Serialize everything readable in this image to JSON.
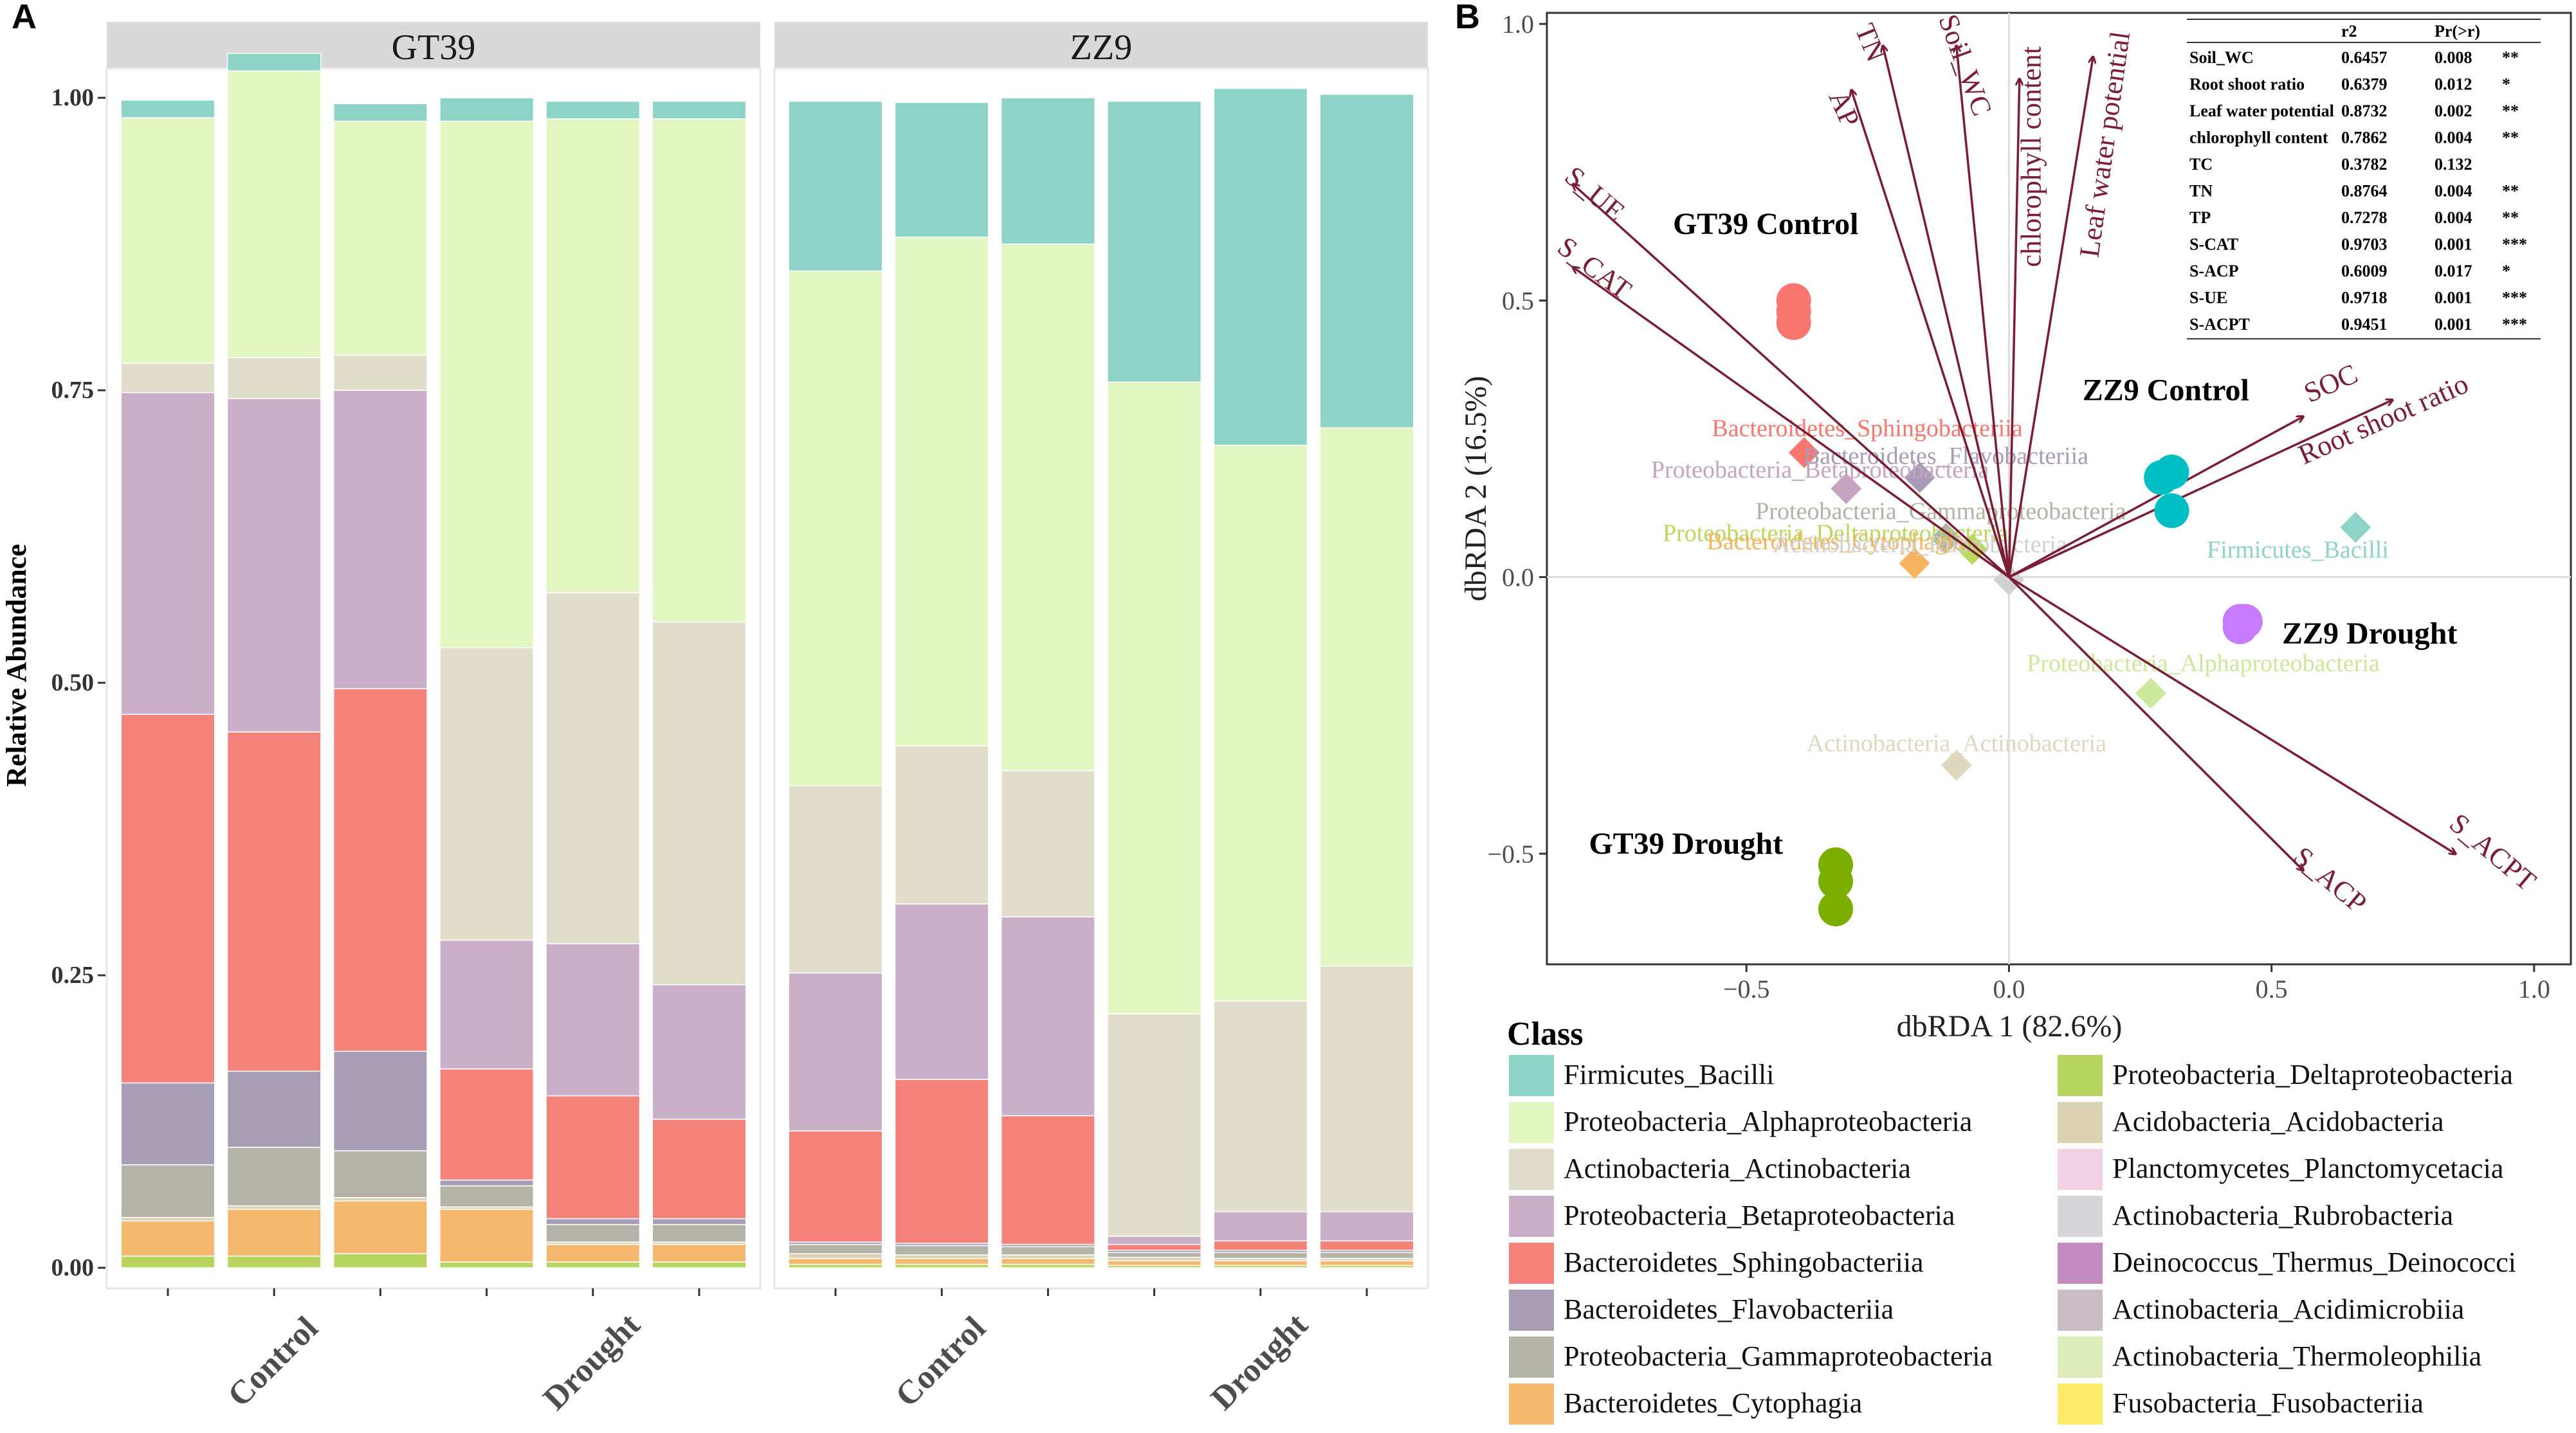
{
  "chart_data": [
    {
      "panel_label": "A",
      "type": "bar",
      "subtype": "stacked-100",
      "ylabel": "Relative Abundance",
      "ylim": [
        0,
        1
      ],
      "yticks": [
        "0.00",
        "0.25",
        "0.50",
        "0.75",
        "1.00"
      ],
      "facets": [
        {
          "name": "GT39",
          "groups": [
            "Control",
            "Drought"
          ],
          "bars": [
            [
              0.01,
              0.03,
              0.003,
              0.045,
              0.07,
              0.315,
              0.275,
              0.025,
              0.21,
              0.015
            ],
            [
              0.01,
              0.04,
              0.003,
              0.05,
              0.065,
              0.29,
              0.285,
              0.035,
              0.245,
              0.015
            ],
            [
              0.012,
              0.045,
              0.003,
              0.04,
              0.085,
              0.31,
              0.255,
              0.03,
              0.2,
              0.015
            ],
            [
              0.005,
              0.045,
              0.002,
              0.018,
              0.005,
              0.095,
              0.11,
              0.25,
              0.45,
              0.02
            ],
            [
              0.005,
              0.015,
              0.002,
              0.015,
              0.005,
              0.105,
              0.13,
              0.3,
              0.405,
              0.015
            ],
            [
              0.005,
              0.015,
              0.002,
              0.015,
              0.005,
              0.085,
              0.115,
              0.31,
              0.43,
              0.015
            ]
          ]
        },
        {
          "name": "ZZ9",
          "groups": [
            "Control",
            "Drought"
          ],
          "bars": [
            [
              0.003,
              0.005,
              0.004,
              0.008,
              0.002,
              0.095,
              0.135,
              0.16,
              0.44,
              0.145
            ],
            [
              0.003,
              0.005,
              0.003,
              0.008,
              0.002,
              0.14,
              0.15,
              0.135,
              0.435,
              0.115
            ],
            [
              0.003,
              0.005,
              0.003,
              0.007,
              0.002,
              0.11,
              0.17,
              0.125,
              0.45,
              0.125
            ],
            [
              0.002,
              0.004,
              0.003,
              0.004,
              0.002,
              0.005,
              0.007,
              0.19,
              0.54,
              0.24
            ],
            [
              0.002,
              0.004,
              0.002,
              0.005,
              0.002,
              0.008,
              0.025,
              0.18,
              0.475,
              0.305
            ],
            [
              0.002,
              0.004,
              0.002,
              0.005,
              0.002,
              0.008,
              0.025,
              0.21,
              0.46,
              0.285
            ]
          ]
        }
      ],
      "stack_order_bottom_to_top": [
        "Proteobacteria_Deltaproteobacteria",
        "Bacteroidetes_Cytophagia",
        "Acidobacteria_Acidobacteria",
        "Proteobacteria_Gammaproteobacteria",
        "Bacteroidetes_Flavobacteriia",
        "Bacteroidetes_Sphingobacteriia",
        "Proteobacteria_Betaproteobacteria",
        "Actinobacteria_Actinobacteria",
        "Proteobacteria_Alphaproteobacteria",
        "Firmicutes_Bacilli"
      ]
    },
    {
      "panel_label": "B",
      "type": "scatter",
      "subtype": "dbRDA biplot",
      "xlabel": "dbRDA 1 (82.6%)",
      "ylabel": "dbRDA 2 (16.5%)",
      "xlim": [
        -0.88,
        1.07
      ],
      "ylim": [
        -0.7,
        1.02
      ],
      "xticks": [
        -0.5,
        0.0,
        0.5,
        1.0
      ],
      "yticks": [
        -0.5,
        0.0,
        0.5,
        1.0
      ],
      "x_tick_labels": [
        "−0.5",
        "0.0",
        "0.5",
        "1.0"
      ],
      "y_tick_labels": [
        "−0.5",
        "0.0",
        "0.5",
        "1.0"
      ],
      "samples": [
        {
          "group": "GT39 Control",
          "color": "#F8766D",
          "points": [
            [
              -0.41,
              0.5
            ],
            [
              -0.41,
              0.48
            ],
            [
              -0.41,
              0.46
            ]
          ]
        },
        {
          "group": "GT39 Drought",
          "color": "#7CAE00",
          "points": [
            [
              -0.33,
              -0.52
            ],
            [
              -0.33,
              -0.55
            ],
            [
              -0.33,
              -0.6
            ]
          ]
        },
        {
          "group": "ZZ9 Control",
          "color": "#00BFC4",
          "points": [
            [
              0.29,
              0.18
            ],
            [
              0.31,
              0.19
            ],
            [
              0.31,
              0.12
            ]
          ]
        },
        {
          "group": "ZZ9 Drought",
          "color": "#C77CFF",
          "points": [
            [
              0.44,
              -0.08
            ],
            [
              0.44,
              -0.09
            ],
            [
              0.45,
              -0.08
            ]
          ]
        }
      ],
      "group_labels": [
        {
          "text": "GT39 Control",
          "x": -0.64,
          "y": 0.62
        },
        {
          "text": "GT39 Drought",
          "x": -0.8,
          "y": -0.5
        },
        {
          "text": "ZZ9 Control",
          "x": 0.14,
          "y": 0.32
        },
        {
          "text": "ZZ9 Drought",
          "x": 0.52,
          "y": -0.12
        }
      ],
      "species": [
        {
          "name": "Firmicutes_Bacilli",
          "x": 0.66,
          "y": 0.09,
          "color": "#8DD3C7",
          "label_x": 0.55,
          "label_y": 0.035
        },
        {
          "name": "Bacteroidetes_Sphingobacteriia",
          "x": -0.39,
          "y": 0.225,
          "color": "#F8766D",
          "label_x": -0.27,
          "label_y": 0.255
        },
        {
          "name": "Bacteroidetes_Flavobacteriia",
          "x": -0.17,
          "y": 0.18,
          "color": "#A89BB6",
          "label_x": -0.12,
          "label_y": 0.205
        },
        {
          "name": "Proteobacteria_Betaproteobacteria",
          "x": -0.31,
          "y": 0.16,
          "color": "#C5A3C2",
          "label_x": -0.36,
          "label_y": 0.18
        },
        {
          "name": "Proteobacteria_Gammaproteobacteria",
          "x": -0.12,
          "y": 0.07,
          "color": "#B2B3A8",
          "label_x": -0.13,
          "label_y": 0.105
        },
        {
          "name": "Proteobacteria_Deltaproteobacteria",
          "x": -0.07,
          "y": 0.05,
          "color": "#B9D85D",
          "label_x": -0.33,
          "label_y": 0.065
        },
        {
          "name": "Bacteroidetes_Cytophagia",
          "x": -0.18,
          "y": 0.025,
          "color": "#F5B560",
          "label_x": -0.33,
          "label_y": 0.05
        },
        {
          "name": "Actinobacteria_Rubrobacteria",
          "x": 0.0,
          "y": -0.005,
          "color": "#D2D1D2",
          "label_x": -0.17,
          "label_y": 0.045
        },
        {
          "name": "Proteobacteria_Alphaproteobacteria",
          "x": 0.27,
          "y": -0.21,
          "color": "#CCE89A",
          "label_x": 0.37,
          "label_y": -0.17
        },
        {
          "name": "Actinobacteria_Actinobacteria",
          "x": -0.1,
          "y": -0.34,
          "color": "#DDD8BE",
          "label_x": -0.1,
          "label_y": -0.315
        }
      ],
      "vectors": [
        {
          "name": "Soil_WC",
          "x": -0.1,
          "y": 0.96
        },
        {
          "name": "Root shoot ratio",
          "x": 0.73,
          "y": 0.32
        },
        {
          "name": "Leaf water potential",
          "x": 0.16,
          "y": 0.94
        },
        {
          "name": "chlorophyll content",
          "x": 0.02,
          "y": 0.9
        },
        {
          "name": "TN",
          "x": -0.24,
          "y": 0.96
        },
        {
          "name": "AP",
          "x": -0.3,
          "y": 0.88
        },
        {
          "name": "S_UE",
          "x": -0.83,
          "y": 0.71
        },
        {
          "name": "S_CAT",
          "x": -0.83,
          "y": 0.56
        },
        {
          "name": "SOC",
          "x": 0.56,
          "y": 0.29
        },
        {
          "name": "S_ACP",
          "x": 0.56,
          "y": -0.53
        },
        {
          "name": "S_ACPT",
          "x": 0.85,
          "y": -0.5
        }
      ],
      "vector_labels": [
        {
          "name": "Soil_WC",
          "x": -0.1,
          "y": 0.92,
          "rot": 70
        },
        {
          "name": "Root shoot ratio",
          "x": 0.72,
          "y": 0.27,
          "rot": -24
        },
        {
          "name": "Leaf water potential",
          "x": 0.2,
          "y": 0.78,
          "rot": -82
        },
        {
          "name": "chlorophyll content",
          "x": 0.06,
          "y": 0.76,
          "rot": -90
        },
        {
          "name": "TN",
          "x": -0.28,
          "y": 0.96,
          "rot": 68
        },
        {
          "name": "AP",
          "x": -0.33,
          "y": 0.84,
          "rot": 66
        },
        {
          "name": "S_UE",
          "x": -0.8,
          "y": 0.68,
          "rot": 40
        },
        {
          "name": "S_CAT",
          "x": -0.8,
          "y": 0.545,
          "rot": 37
        },
        {
          "name": "SOC",
          "x": 0.62,
          "y": 0.335,
          "rot": -24
        },
        {
          "name": "S_ACP",
          "x": 0.6,
          "y": -0.56,
          "rot": 40
        },
        {
          "name": "S_ACPT",
          "x": 0.91,
          "y": -0.51,
          "rot": 40
        }
      ],
      "stats_table": {
        "columns": [
          "",
          "r2",
          "Pr(>r)",
          ""
        ],
        "rows": [
          [
            "Soil_WC",
            "0.6457",
            "0.008",
            "**"
          ],
          [
            "Root shoot ratio",
            "0.6379",
            "0.012",
            "*"
          ],
          [
            "Leaf water potential",
            "0.8732",
            "0.002",
            "**"
          ],
          [
            "chlorophyll content",
            "0.7862",
            "0.004",
            "**"
          ],
          [
            "TC",
            "0.3782",
            "0.132",
            ""
          ],
          [
            "TN",
            "0.8764",
            "0.004",
            "**"
          ],
          [
            "TP",
            "0.7278",
            "0.004",
            "**"
          ],
          [
            "S-CAT",
            "0.9703",
            "0.001",
            "***"
          ],
          [
            "S-ACP",
            "0.6009",
            "0.017",
            "*"
          ],
          [
            "S-UE",
            "0.9718",
            "0.001",
            "***"
          ],
          [
            "S-ACPT",
            "0.9451",
            "0.001",
            "***"
          ]
        ]
      }
    }
  ],
  "legend": {
    "title": "Class",
    "entries": [
      {
        "name": "Firmicutes_Bacilli",
        "color": "#8DD3C7"
      },
      {
        "name": "Proteobacteria_Alphaproteobacteria",
        "color": "#E2F6C2"
      },
      {
        "name": "Actinobacteria_Actinobacteria",
        "color": "#E1DDCB"
      },
      {
        "name": "Proteobacteria_Betaproteobacteria",
        "color": "#CAAFC9"
      },
      {
        "name": "Bacteroidetes_Sphingobacteriia",
        "color": "#F5827A"
      },
      {
        "name": "Bacteroidetes_Flavobacteriia",
        "color": "#A79EB6"
      },
      {
        "name": "Proteobacteria_Gammaproteobacteria",
        "color": "#B3B4A7"
      },
      {
        "name": "Bacteroidetes_Cytophagia",
        "color": "#F4B76E"
      },
      {
        "name": "Proteobacteria_Deltaproteobacteria",
        "color": "#B7D45E"
      },
      {
        "name": "Acidobacteria_Acidobacteria",
        "color": "#DCD1B3"
      },
      {
        "name": "Planctomycetes_Planctomycetacia",
        "color": "#F1D2E3"
      },
      {
        "name": "Actinobacteria_Rubrobacteria",
        "color": "#D7D6D8"
      },
      {
        "name": "Deinococcus_Thermus_Deinococci",
        "color": "#C18AC0"
      },
      {
        "name": "Actinobacteria_Acidimicrobiia",
        "color": "#C8BDC4"
      },
      {
        "name": "Actinobacteria_Thermoleophilia",
        "color": "#DCEBB9"
      },
      {
        "name": "Fusobacteria_Fusobacteriia",
        "color": "#FDEB6B"
      }
    ]
  }
}
